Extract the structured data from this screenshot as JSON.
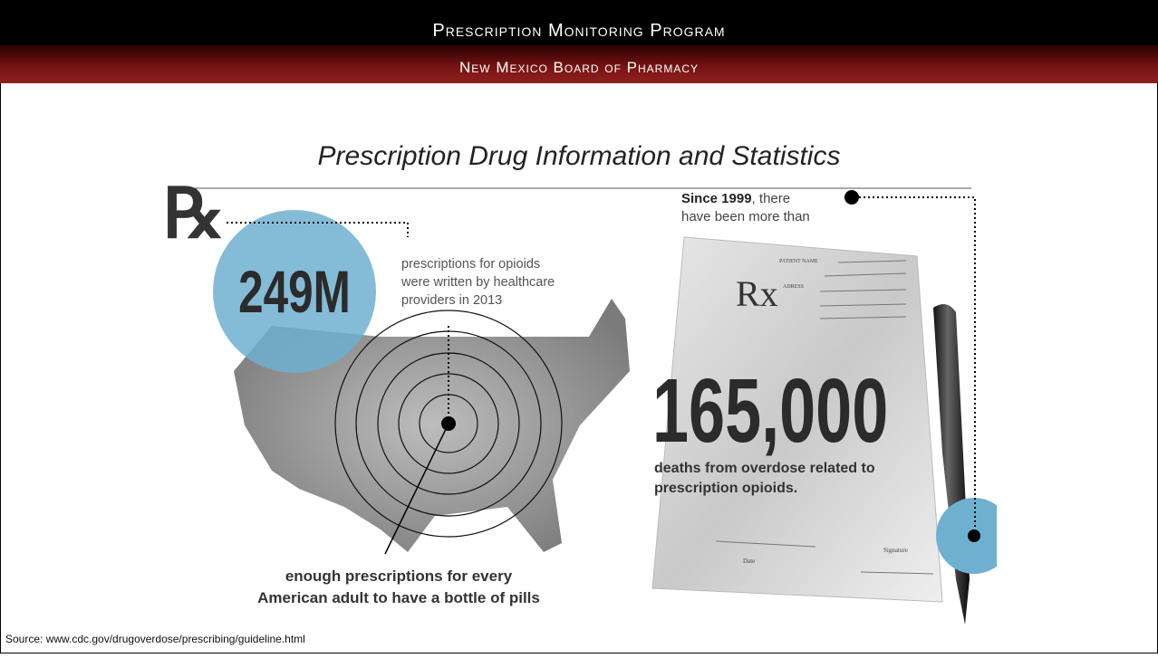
{
  "header": {
    "title": "Prescription Monitoring Program",
    "subtitle": "New Mexico Board of Pharmacy"
  },
  "title": "Prescription Drug Information and Statistics",
  "left_panel": {
    "rx_symbol": "℞",
    "big_number": "249M",
    "description": [
      "prescriptions for opioids",
      "were written by healthcare",
      "providers in 2013"
    ],
    "caption": [
      "enough prescriptions for every",
      "American adult to have a bottle of pills"
    ]
  },
  "right_panel": {
    "intro_bold": "Since 1999",
    "intro_rest": ", there",
    "intro_line2": "have been more than",
    "pad": {
      "rx": "Rx",
      "patient_name": "PATIENT NAME",
      "address": "ADRESS",
      "date": "Date",
      "signature": "Signature"
    },
    "big_number": "165,000",
    "description": [
      "deaths from overdose related to",
      "prescription opioids."
    ]
  },
  "source": "Source: www.cdc.gov/drugoverdose/prescribing/guideline.html"
}
